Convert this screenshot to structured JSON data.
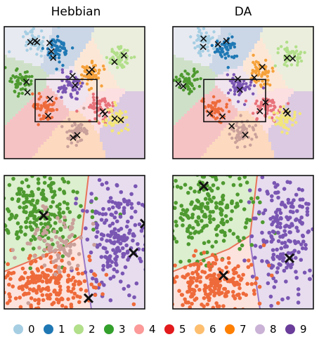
{
  "titles": {
    "left": "Hebbian",
    "right": "DA"
  },
  "legend": {
    "items": [
      {
        "label": "0",
        "color": "#a6cee3"
      },
      {
        "label": "1",
        "color": "#1f78b4"
      },
      {
        "label": "2",
        "color": "#b2df8a"
      },
      {
        "label": "3",
        "color": "#33a02c"
      },
      {
        "label": "4",
        "color": "#fb9a99"
      },
      {
        "label": "5",
        "color": "#e31a1c"
      },
      {
        "label": "6",
        "color": "#fdbf6f"
      },
      {
        "label": "7",
        "color": "#ff7f00"
      },
      {
        "label": "8",
        "color": "#cab2d6"
      },
      {
        "label": "9",
        "color": "#6a3d9a"
      }
    ]
  },
  "chart_data": [
    {
      "type": "scatter",
      "title": "Hebbian",
      "panel": "overview",
      "classes": [
        "0",
        "1",
        "2",
        "3",
        "4",
        "5",
        "6",
        "7",
        "8",
        "9"
      ],
      "cluster_centers": [
        {
          "class": "0",
          "x": 0.22,
          "y": 0.88
        },
        {
          "class": "1",
          "x": 0.37,
          "y": 0.83
        },
        {
          "class": "2",
          "x": 0.83,
          "y": 0.77
        },
        {
          "class": "3",
          "x": 0.12,
          "y": 0.58
        },
        {
          "class": "4",
          "x": 0.68,
          "y": 0.38
        },
        {
          "class": "5",
          "x": 0.3,
          "y": 0.38
        },
        {
          "class": "6",
          "x": 0.62,
          "y": 0.65
        },
        {
          "class": "7",
          "x": 0.5,
          "y": 0.2
        },
        {
          "class": "8",
          "x": 0.47,
          "y": 0.55
        },
        {
          "class": "9",
          "x": 0.8,
          "y": 0.3
        }
      ],
      "prototypes_x_marks": 22,
      "zoom_box": true
    },
    {
      "type": "scatter",
      "title": "DA",
      "panel": "overview",
      "classes": [
        "0",
        "1",
        "2",
        "3",
        "4",
        "5",
        "6",
        "7",
        "8",
        "9"
      ],
      "cluster_centers": [
        {
          "class": "0",
          "x": 0.22,
          "y": 0.88
        },
        {
          "class": "1",
          "x": 0.37,
          "y": 0.83
        },
        {
          "class": "2",
          "x": 0.83,
          "y": 0.77
        },
        {
          "class": "3",
          "x": 0.12,
          "y": 0.58
        },
        {
          "class": "4",
          "x": 0.68,
          "y": 0.38
        },
        {
          "class": "5",
          "x": 0.3,
          "y": 0.38
        },
        {
          "class": "6",
          "x": 0.62,
          "y": 0.65
        },
        {
          "class": "7",
          "x": 0.5,
          "y": 0.2
        },
        {
          "class": "8",
          "x": 0.47,
          "y": 0.55
        },
        {
          "class": "9",
          "x": 0.8,
          "y": 0.3
        }
      ],
      "prototypes_x_marks": 20,
      "zoom_box": true
    },
    {
      "type": "scatter",
      "title": "",
      "panel": "zoom-Hebbian",
      "classes_shown": [
        "3",
        "5",
        "8",
        "7"
      ],
      "prototypes_x_marks": 4
    },
    {
      "type": "scatter",
      "title": "",
      "panel": "zoom-DA",
      "classes_shown": [
        "3",
        "5",
        "8"
      ],
      "prototypes_x_marks": 3
    }
  ]
}
